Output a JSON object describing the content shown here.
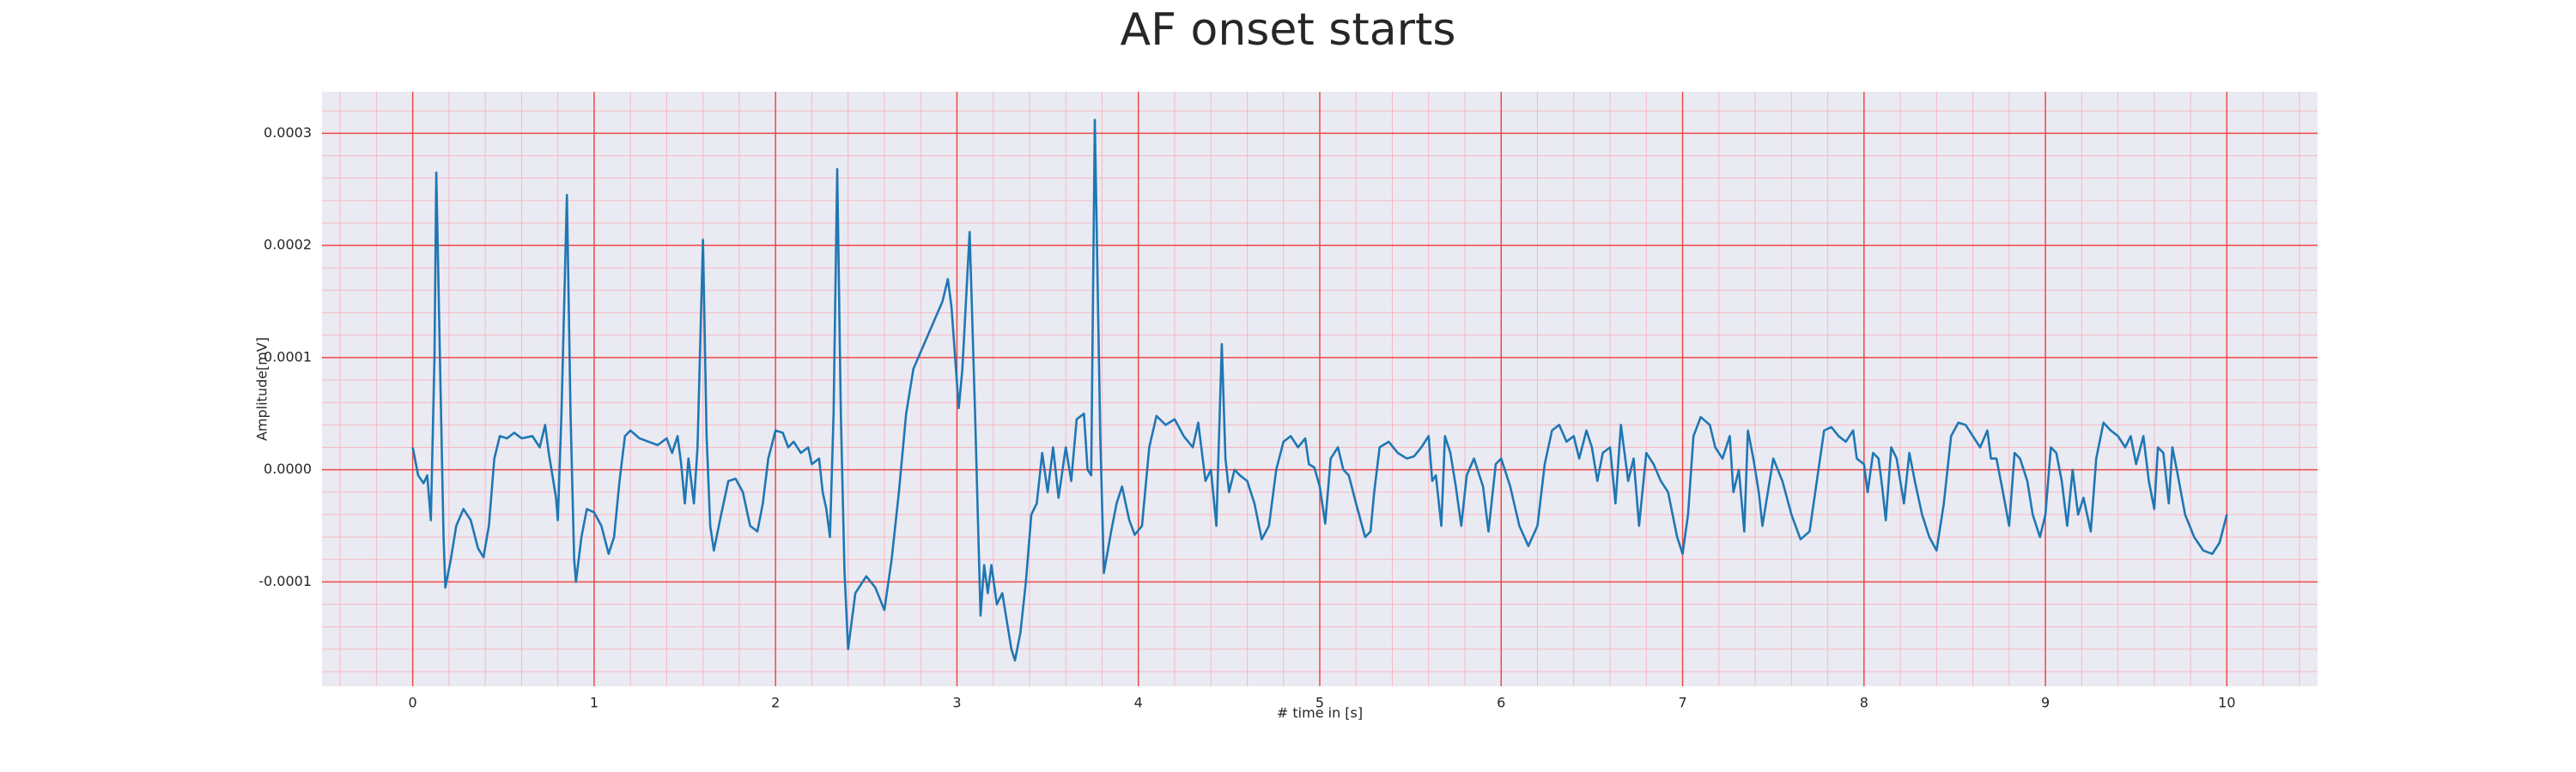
{
  "chart_data": {
    "type": "line",
    "title": "AF onset starts",
    "xlabel": "# time in [s]",
    "ylabel": "Amplitude[mV]",
    "color": "#1f77b4",
    "background": "#eaeaf2",
    "grid": true,
    "grid_color": "#f04848",
    "minor_grid_color": "#f7b8c4",
    "xlim": [
      -0.5,
      10.5
    ],
    "ylim": [
      -0.000193,
      0.000337
    ],
    "xticks": [
      0,
      1,
      2,
      3,
      4,
      5,
      6,
      7,
      8,
      9,
      10
    ],
    "yticks": [
      -0.0001,
      {
        "value": 0,
        "label": "0.0000"
      },
      0.0001,
      0.0002,
      0.0003
    ],
    "xminorticks": [
      -0.4,
      -0.2,
      0.2,
      0.4,
      0.6,
      0.8,
      1.2,
      1.4,
      1.6,
      1.8,
      2.2,
      2.4,
      2.6,
      2.8,
      3.2,
      3.4,
      3.6,
      3.8,
      4.2,
      4.4,
      4.6,
      4.8,
      5.2,
      5.4,
      5.6,
      5.8,
      6.2,
      6.4,
      6.6,
      6.8,
      7.2,
      7.4,
      7.6,
      7.8,
      8.2,
      8.4,
      8.6,
      8.8,
      9.2,
      9.4,
      9.6,
      9.8,
      10.2,
      10.4
    ],
    "yminorticks": [
      -0.00018,
      -0.00016,
      -0.00014,
      -0.00012,
      -8e-05,
      -6e-05,
      -4e-05,
      -2e-05,
      2e-05,
      4e-05,
      6e-05,
      8e-05,
      0.00012,
      0.00014,
      0.00016,
      0.00018,
      0.00022,
      0.00024,
      0.00026,
      0.00028,
      0.00032
    ],
    "x": [
      0,
      0.03,
      0.06,
      0.08,
      0.1,
      0.12,
      0.13,
      0.15,
      0.17,
      0.18,
      0.21,
      0.24,
      0.28,
      0.32,
      0.36,
      0.39,
      0.42,
      0.45,
      0.48,
      0.52,
      0.56,
      0.6,
      0.66,
      0.7,
      0.73,
      0.75,
      0.77,
      0.79,
      0.8,
      0.82,
      0.85,
      0.87,
      0.89,
      0.9,
      0.93,
      0.96,
      1,
      1.04,
      1.08,
      1.11,
      1.14,
      1.17,
      1.2,
      1.25,
      1.3,
      1.35,
      1.4,
      1.43,
      1.46,
      1.48,
      1.5,
      1.52,
      1.55,
      1.57,
      1.6,
      1.62,
      1.64,
      1.66,
      1.7,
      1.74,
      1.78,
      1.82,
      1.86,
      1.9,
      1.93,
      1.96,
      2,
      2.04,
      2.07,
      2.1,
      2.14,
      2.18,
      2.2,
      2.24,
      2.26,
      2.28,
      2.3,
      2.32,
      2.34,
      2.36,
      2.38,
      2.4,
      2.44,
      2.5,
      2.55,
      2.6,
      2.64,
      2.68,
      2.72,
      2.76,
      2.8,
      2.84,
      2.88,
      2.92,
      2.95,
      2.97,
      2.99,
      3.01,
      3.03,
      3.07,
      3.1,
      3.13,
      3.15,
      3.17,
      3.19,
      3.22,
      3.25,
      3.3,
      3.32,
      3.35,
      3.38,
      3.41,
      3.44,
      3.47,
      3.5,
      3.53,
      3.56,
      3.6,
      3.63,
      3.66,
      3.7,
      3.72,
      3.74,
      3.76,
      3.79,
      3.81,
      3.85,
      3.88,
      3.91,
      3.95,
      3.98,
      4.02,
      4.06,
      4.1,
      4.15,
      4.2,
      4.25,
      4.3,
      4.33,
      4.37,
      4.4,
      4.43,
      4.46,
      4.48,
      4.5,
      4.53,
      4.56,
      4.6,
      4.64,
      4.68,
      4.72,
      4.76,
      4.8,
      4.84,
      4.88,
      4.92,
      4.94,
      4.97,
      5,
      5.03,
      5.06,
      5.1,
      5.13,
      5.16,
      5.2,
      5.25,
      5.28,
      5.3,
      5.33,
      5.38,
      5.43,
      5.48,
      5.52,
      5.56,
      5.6,
      5.62,
      5.64,
      5.67,
      5.69,
      5.72,
      5.75,
      5.78,
      5.81,
      5.85,
      5.9,
      5.93,
      5.97,
      6,
      6.05,
      6.1,
      6.15,
      6.2,
      6.24,
      6.28,
      6.32,
      6.36,
      6.4,
      6.43,
      6.47,
      6.5,
      6.53,
      6.56,
      6.6,
      6.63,
      6.66,
      6.7,
      6.73,
      6.76,
      6.8,
      6.84,
      6.88,
      6.92,
      6.97,
      7,
      7.03,
      7.06,
      7.1,
      7.15,
      7.18,
      7.22,
      7.26,
      7.28,
      7.31,
      7.34,
      7.36,
      7.39,
      7.42,
      7.44,
      7.47,
      7.5,
      7.55,
      7.6,
      7.65,
      7.7,
      7.74,
      7.78,
      7.82,
      7.86,
      7.9,
      7.94,
      7.96,
      8,
      8.02,
      8.05,
      8.08,
      8.1,
      8.12,
      8.15,
      8.18,
      8.22,
      8.25,
      8.28,
      8.32,
      8.36,
      8.4,
      8.44,
      8.48,
      8.52,
      8.56,
      8.6,
      8.64,
      8.68,
      8.7,
      8.73,
      8.76,
      8.8,
      8.83,
      8.86,
      8.9,
      8.93,
      8.97,
      9,
      9.03,
      9.06,
      9.09,
      9.12,
      9.15,
      9.18,
      9.21,
      9.25,
      9.28,
      9.32,
      9.36,
      9.4,
      9.44,
      9.47,
      9.5,
      9.54,
      9.57,
      9.6,
      9.62,
      9.65,
      9.68,
      9.7,
      9.73,
      9.77,
      9.82,
      9.87,
      9.92,
      9.96,
      10
    ],
    "values": [
      2e-05,
      -5e-06,
      -1.2e-05,
      -5e-06,
      -4.5e-05,
      0.0001,
      0.000265,
      0.0001,
      -6e-05,
      -0.000105,
      -8e-05,
      -5e-05,
      -3.5e-05,
      -4.5e-05,
      -7e-05,
      -7.8e-05,
      -5e-05,
      1e-05,
      3e-05,
      2.8e-05,
      3.3e-05,
      2.8e-05,
      3e-05,
      2e-05,
      4e-05,
      1.5e-05,
      -5e-06,
      -2.5e-05,
      -4.5e-05,
      5e-05,
      0.000245,
      5e-05,
      -8e-05,
      -0.0001,
      -6e-05,
      -3.5e-05,
      -3.8e-05,
      -5e-05,
      -7.5e-05,
      -6e-05,
      -1e-05,
      3e-05,
      3.5e-05,
      2.8e-05,
      2.5e-05,
      2.2e-05,
      2.8e-05,
      1.5e-05,
      3e-05,
      5e-06,
      -3e-05,
      1e-05,
      -3e-05,
      2e-05,
      0.000205,
      3e-05,
      -5e-05,
      -7.2e-05,
      -4e-05,
      -1e-05,
      -8e-06,
      -2e-05,
      -5e-05,
      -5.5e-05,
      -3e-05,
      1e-05,
      3.5e-05,
      3.3e-05,
      2e-05,
      2.5e-05,
      1.5e-05,
      2e-05,
      5e-06,
      1e-05,
      -2e-05,
      -3.5e-05,
      -6e-05,
      5e-05,
      0.000268,
      5e-05,
      -9e-05,
      -0.00016,
      -0.00011,
      -9.5e-05,
      -0.000105,
      -0.000125,
      -8e-05,
      -2e-05,
      5e-05,
      9e-05,
      0.000105,
      0.00012,
      0.000135,
      0.00015,
      0.00017,
      0.000145,
      0.0001,
      5.5e-05,
      9e-05,
      0.000212,
      5e-05,
      -0.00013,
      -8.5e-05,
      -0.00011,
      -8.5e-05,
      -0.00012,
      -0.00011,
      -0.00016,
      -0.00017,
      -0.000145,
      -0.0001,
      -4e-05,
      -3e-05,
      1.5e-05,
      -2e-05,
      2e-05,
      -2.5e-05,
      2e-05,
      -1e-05,
      4.5e-05,
      5e-05,
      0,
      -5e-06,
      0.000312,
      3e-05,
      -9.2e-05,
      -5.5e-05,
      -3e-05,
      -1.5e-05,
      -4.5e-05,
      -5.8e-05,
      -5e-05,
      2e-05,
      4.8e-05,
      4e-05,
      4.5e-05,
      3e-05,
      2e-05,
      4.2e-05,
      -1e-05,
      0,
      -5e-05,
      0.000112,
      1e-05,
      -2e-05,
      0,
      -5e-06,
      -1e-05,
      -3e-05,
      -6.2e-05,
      -5e-05,
      0,
      2.5e-05,
      3e-05,
      2e-05,
      2.8e-05,
      5e-06,
      2e-06,
      -1.5e-05,
      -4.8e-05,
      1e-05,
      2e-05,
      0,
      -5e-06,
      -3e-05,
      -6e-05,
      -5.5e-05,
      -2e-05,
      2e-05,
      2.5e-05,
      1.5e-05,
      1e-05,
      1.2e-05,
      2e-05,
      3e-05,
      -1e-05,
      -5e-06,
      -5e-05,
      3e-05,
      1.5e-05,
      -1.5e-05,
      -5e-05,
      -5e-06,
      1e-05,
      -1.5e-05,
      -5.5e-05,
      5e-06,
      1e-05,
      -1.5e-05,
      -5e-05,
      -6.8e-05,
      -5e-05,
      5e-06,
      3.5e-05,
      4e-05,
      2.5e-05,
      3e-05,
      1e-05,
      3.5e-05,
      2e-05,
      -1e-05,
      1.5e-05,
      2e-05,
      -3e-05,
      4e-05,
      -1e-05,
      1e-05,
      -5e-05,
      1.5e-05,
      5e-06,
      -1e-05,
      -2e-05,
      -6e-05,
      -7.5e-05,
      -4e-05,
      3e-05,
      4.7e-05,
      4e-05,
      2e-05,
      1e-05,
      3e-05,
      -2e-05,
      0,
      -5.5e-05,
      3.5e-05,
      1e-05,
      -2e-05,
      -5e-05,
      -2e-05,
      1e-05,
      -1e-05,
      -4e-05,
      -6.2e-05,
      -5.5e-05,
      -1e-05,
      3.5e-05,
      3.8e-05,
      3e-05,
      2.5e-05,
      3.5e-05,
      1e-05,
      5e-06,
      -2e-05,
      1.5e-05,
      1e-05,
      -1.5e-05,
      -4.5e-05,
      2e-05,
      1e-05,
      -3e-05,
      1.5e-05,
      -1e-05,
      -4e-05,
      -6e-05,
      -7.2e-05,
      -3e-05,
      3e-05,
      4.2e-05,
      4e-05,
      3e-05,
      2e-05,
      3.5e-05,
      1e-05,
      1e-05,
      -1.5e-05,
      -5e-05,
      1.5e-05,
      1e-05,
      -1e-05,
      -4e-05,
      -6e-05,
      -4e-05,
      2e-05,
      1.5e-05,
      -1e-05,
      -5e-05,
      0,
      -4e-05,
      -2.5e-05,
      -5.5e-05,
      1e-05,
      4.2e-05,
      3.5e-05,
      3e-05,
      2e-05,
      3e-05,
      5e-06,
      3e-05,
      -1e-05,
      -3.5e-05,
      2e-05,
      1.5e-05,
      -3e-05,
      2e-05,
      -5e-06,
      -4e-05,
      -6e-05,
      -7.2e-05,
      -7.5e-05,
      -6.5e-05,
      -4e-05
    ]
  }
}
